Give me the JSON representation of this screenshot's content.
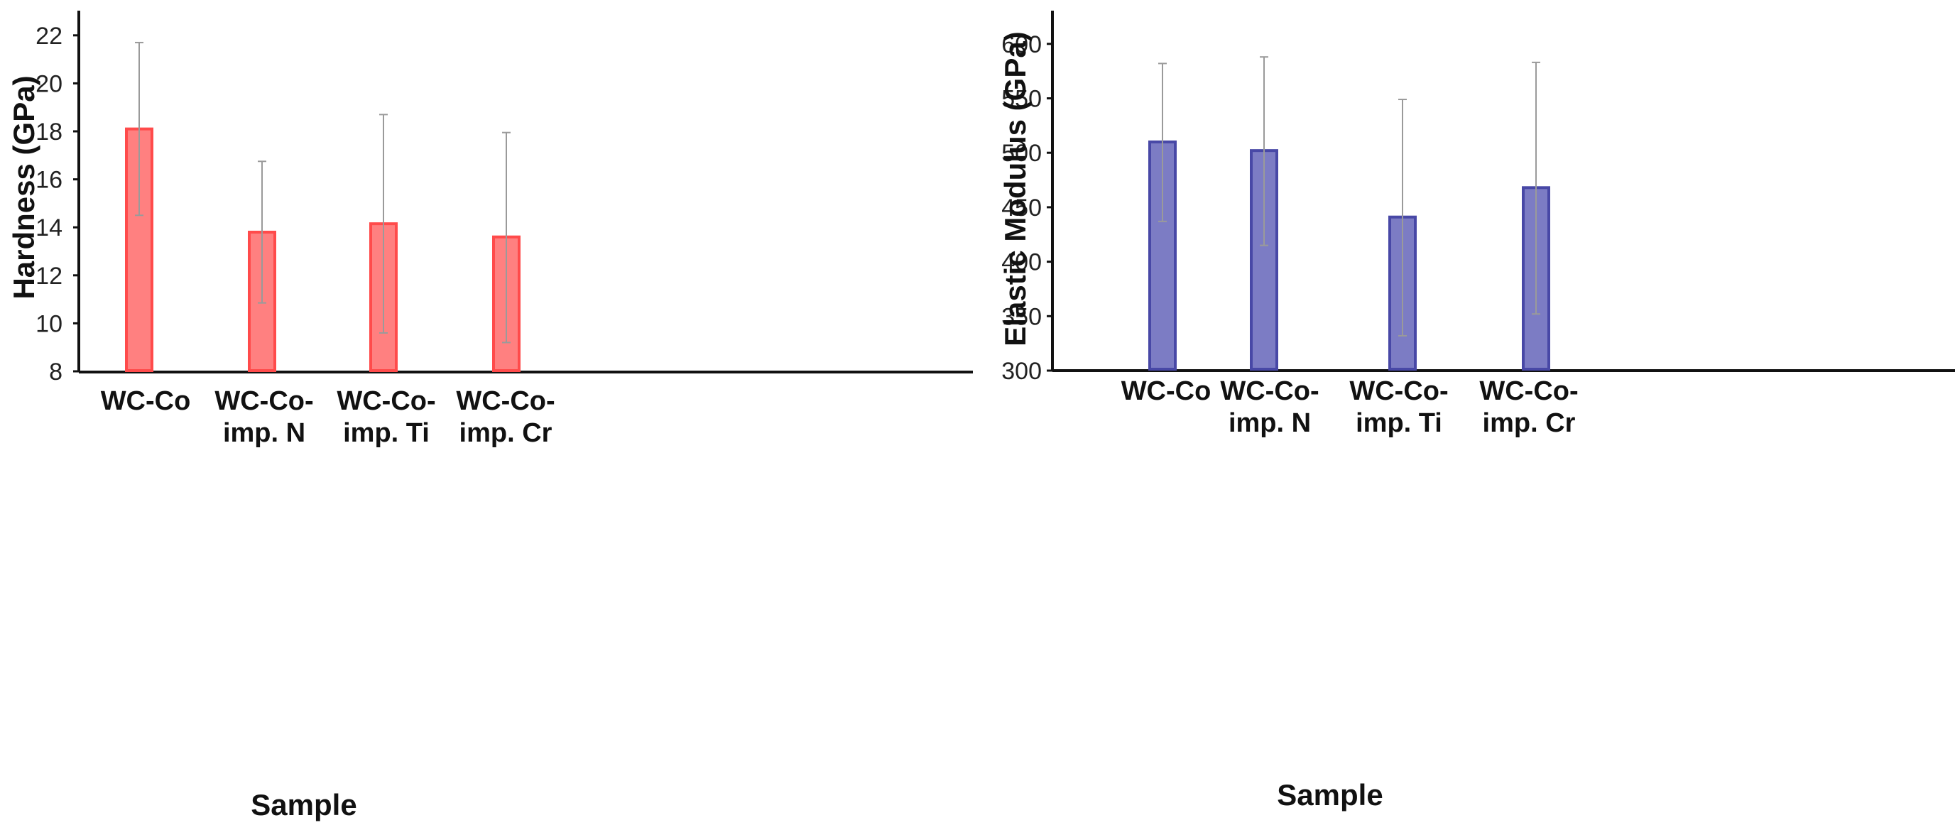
{
  "chart_data": [
    {
      "type": "bar",
      "categories": [
        [
          "WC-Co"
        ],
        [
          "WC-Co-",
          "imp. N"
        ],
        [
          "WC-Co-",
          "imp. Ti"
        ],
        [
          "WC-Co-",
          "imp. Cr"
        ]
      ],
      "values": [
        18.1,
        13.8,
        14.15,
        13.6
      ],
      "error_low": [
        14.5,
        10.85,
        9.6,
        9.2
      ],
      "error_high": [
        21.7,
        16.75,
        18.7,
        17.95
      ],
      "xlabel": "Sample",
      "ylabel": "Hardness (GPa)",
      "ylim": [
        8,
        23
      ],
      "yticks": [
        8,
        10,
        12,
        14,
        16,
        18,
        20,
        22
      ],
      "bar_fill": "#ff8080",
      "bar_stroke": "#ff4b4b",
      "grid": false
    },
    {
      "type": "bar",
      "categories": [
        [
          "WC-Co"
        ],
        [
          "WC-Co-",
          "imp. N"
        ],
        [
          "WC-Co-",
          "imp. Ti"
        ],
        [
          "WC-Co-",
          "imp. Cr"
        ]
      ],
      "values": [
        510,
        502,
        441,
        468
      ],
      "error_low": [
        437,
        415,
        332,
        352
      ],
      "error_high": [
        582,
        588,
        549,
        583
      ],
      "xlabel": "Sample",
      "ylabel": "Elastic Modulus (GPa)",
      "ylim": [
        300,
        625
      ],
      "yticks": [
        300,
        350,
        400,
        450,
        500,
        550,
        600
      ],
      "bar_fill": "#7c7cc4",
      "bar_stroke": "#4848a6",
      "grid": false
    }
  ]
}
